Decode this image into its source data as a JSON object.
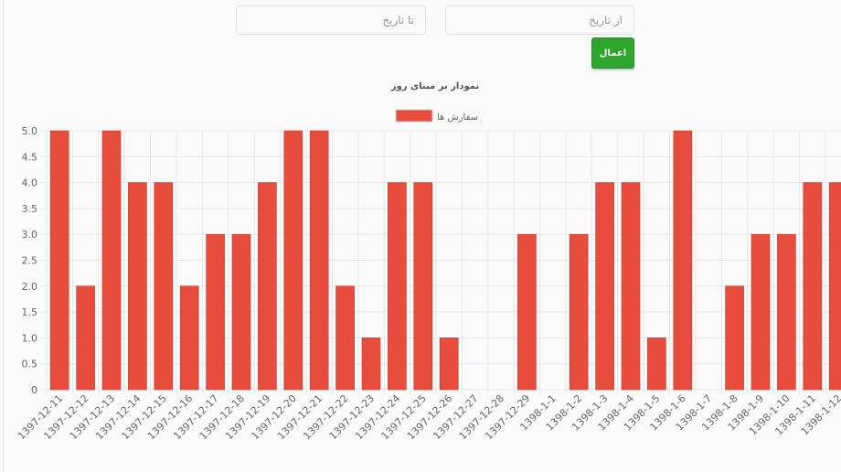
{
  "filters": {
    "to_placeholder": "تا تاریخ",
    "from_placeholder": "از تاریخ",
    "apply_label": "اعمال"
  },
  "colors": {
    "bar": "#e74c3c",
    "bar_border": "#c0392b",
    "grid": "#e6e6e6",
    "axis_text": "#666666",
    "button": "#2ea62b"
  },
  "chart_data": {
    "type": "bar",
    "title": "نمودار بر مبنای روز",
    "legend_position": "top-center",
    "grid": true,
    "ylim": [
      0,
      5
    ],
    "y_ticks": [
      "0",
      "0.5",
      "1.0",
      "1.5",
      "2.0",
      "2.5",
      "3.0",
      "3.5",
      "4.0",
      "4.5",
      "5.0"
    ],
    "categories": [
      "1397-12-11",
      "1397-12-12",
      "1397-12-13",
      "1397-12-14",
      "1397-12-15",
      "1397-12-16",
      "1397-12-17",
      "1397-12-18",
      "1397-12-19",
      "1397-12-20",
      "1397-12-21",
      "1397-12-22",
      "1397-12-23",
      "1397-12-24",
      "1397-12-25",
      "1397-12-26",
      "1397-12-27",
      "1397-12-28",
      "1397-12-29",
      "1398-1-1",
      "1398-1-2",
      "1398-1-3",
      "1398-1-4",
      "1398-1-5",
      "1398-1-6",
      "1398-1-7",
      "1398-1-8",
      "1398-1-9",
      "1398-1-10",
      "1398-1-11",
      "1398-1-12"
    ],
    "series": [
      {
        "name": "سفارش ها",
        "values": [
          5,
          2,
          5,
          4,
          4,
          2,
          3,
          3,
          4,
          5,
          5,
          2,
          1,
          4,
          4,
          1,
          0,
          0,
          3,
          0,
          3,
          4,
          4,
          1,
          5,
          0,
          2,
          3,
          3,
          4,
          4
        ]
      }
    ]
  }
}
